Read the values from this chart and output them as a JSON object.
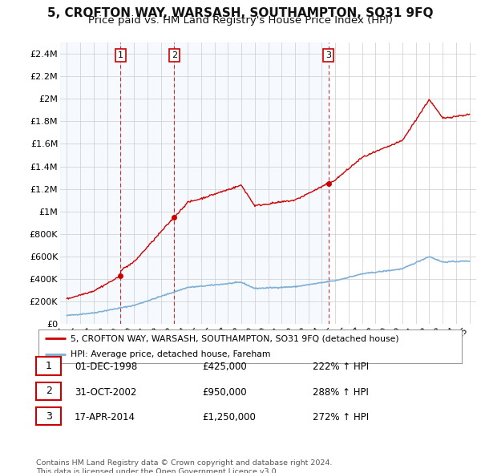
{
  "title": "5, CROFTON WAY, WARSASH, SOUTHAMPTON, SO31 9FQ",
  "subtitle": "Price paid vs. HM Land Registry's House Price Index (HPI)",
  "ylim": [
    0,
    2500000
  ],
  "yticks": [
    0,
    200000,
    400000,
    600000,
    800000,
    1000000,
    1200000,
    1400000,
    1600000,
    1800000,
    2000000,
    2200000,
    2400000
  ],
  "ytick_labels": [
    "£0",
    "£200K",
    "£400K",
    "£600K",
    "£800K",
    "£1M",
    "£1.2M",
    "£1.4M",
    "£1.6M",
    "£1.8M",
    "£2M",
    "£2.2M",
    "£2.4M"
  ],
  "background_color": "#ffffff",
  "plot_bg_color": "#ffffff",
  "grid_color": "#cccccc",
  "sale_line_color": "#cc0000",
  "hpi_line_color": "#7fafd4",
  "shade_color": "#ddeeff",
  "sale_points": [
    {
      "date": 1999.0,
      "price": 425000,
      "label": "1"
    },
    {
      "date": 2003.0,
      "price": 950000,
      "label": "2"
    },
    {
      "date": 2014.5,
      "price": 1250000,
      "label": "3"
    }
  ],
  "legend_sale_label": "5, CROFTON WAY, WARSASH, SOUTHAMPTON, SO31 9FQ (detached house)",
  "legend_hpi_label": "HPI: Average price, detached house, Fareham",
  "table_rows": [
    {
      "num": "1",
      "date": "01-DEC-1998",
      "price": "£425,000",
      "pct": "222% ↑ HPI"
    },
    {
      "num": "2",
      "date": "31-OCT-2002",
      "price": "£950,000",
      "pct": "288% ↑ HPI"
    },
    {
      "num": "3",
      "date": "17-APR-2014",
      "price": "£1,250,000",
      "pct": "272% ↑ HPI"
    }
  ],
  "footer": "Contains HM Land Registry data © Crown copyright and database right 2024.\nThis data is licensed under the Open Government Licence v3.0.",
  "title_fontsize": 11,
  "subtitle_fontsize": 9.5,
  "tick_fontsize": 8,
  "xlim_start": 1994.5,
  "xlim_end": 2025.5,
  "xticks": [
    1995,
    1996,
    1997,
    1998,
    1999,
    2000,
    2001,
    2002,
    2003,
    2004,
    2005,
    2006,
    2007,
    2008,
    2009,
    2010,
    2011,
    2012,
    2013,
    2014,
    2015,
    2016,
    2017,
    2018,
    2019,
    2020,
    2021,
    2022,
    2023,
    2024,
    2025
  ]
}
